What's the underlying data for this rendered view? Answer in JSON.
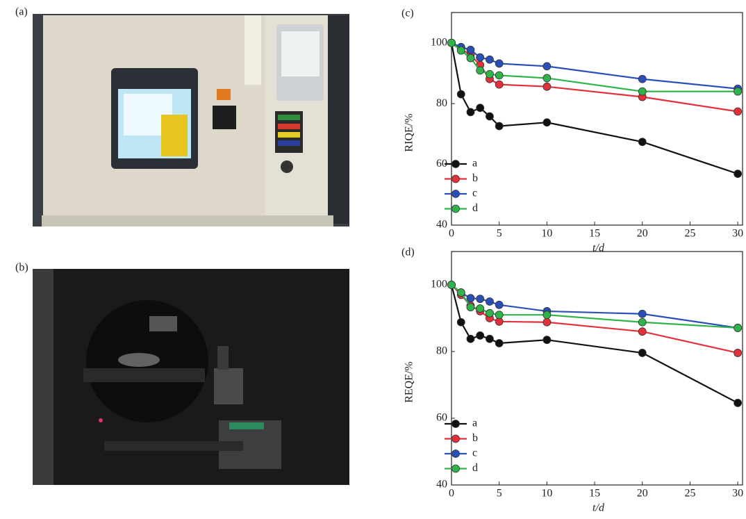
{
  "panels": [
    {
      "label": "(a)"
    },
    {
      "label": "(b)"
    }
  ],
  "chart_data": [
    {
      "type": "line",
      "panel_label": "(c)",
      "x_label": "t/d",
      "y_label": "RIQE/%",
      "x": [
        0,
        1,
        2,
        3,
        4,
        5,
        10,
        20,
        30
      ],
      "xlim": [
        0,
        30.5
      ],
      "xticks": [
        0,
        5,
        10,
        15,
        20,
        25,
        30
      ],
      "ylim": [
        40,
        110
      ],
      "yticks": [
        40,
        60,
        80,
        100
      ],
      "legend": "lower left",
      "series": [
        {
          "name": "a",
          "color": "#111111",
          "values": [
            100,
            83.1,
            77.2,
            78.6,
            75.8,
            72.6,
            73.8,
            67.4,
            56.9
          ]
        },
        {
          "name": "b",
          "color": "#e3303b",
          "values": [
            100,
            98,
            96,
            92.7,
            88.1,
            86.3,
            85.6,
            82.2,
            77.4
          ]
        },
        {
          "name": "c",
          "color": "#2a50b8",
          "values": [
            100,
            98.6,
            97.7,
            95.2,
            94.5,
            93.2,
            92.3,
            88.1,
            84.9
          ]
        },
        {
          "name": "d",
          "color": "#2fb34a",
          "values": [
            100,
            97.5,
            95,
            90.9,
            89.7,
            89.3,
            88.4,
            84,
            84
          ]
        }
      ]
    },
    {
      "type": "line",
      "panel_label": "(d)",
      "x_label": "t/d",
      "y_label": "REQE/%",
      "x": [
        0,
        1,
        2,
        3,
        4,
        5,
        10,
        20,
        30
      ],
      "xlim": [
        0,
        30.5
      ],
      "xticks": [
        0,
        5,
        10,
        15,
        20,
        25,
        30
      ],
      "ylim": [
        40,
        110
      ],
      "yticks": [
        40,
        60,
        80,
        100
      ],
      "legend": "lower left",
      "series": [
        {
          "name": "a",
          "color": "#111111",
          "values": [
            100,
            88.8,
            83.8,
            84.8,
            83.8,
            82.5,
            83.5,
            79.6,
            64.6
          ]
        },
        {
          "name": "b",
          "color": "#e3303b",
          "values": [
            100,
            97,
            93.8,
            92.1,
            90,
            89,
            88.8,
            86,
            79.6
          ]
        },
        {
          "name": "c",
          "color": "#2a50b8",
          "values": [
            100,
            97.7,
            96,
            95.8,
            95,
            94,
            92.1,
            91.3,
            87.1
          ]
        },
        {
          "name": "d",
          "color": "#2fb34a",
          "values": [
            100,
            97.7,
            93.3,
            92.9,
            91.5,
            91,
            91,
            88.8,
            87.1
          ]
        }
      ]
    }
  ]
}
